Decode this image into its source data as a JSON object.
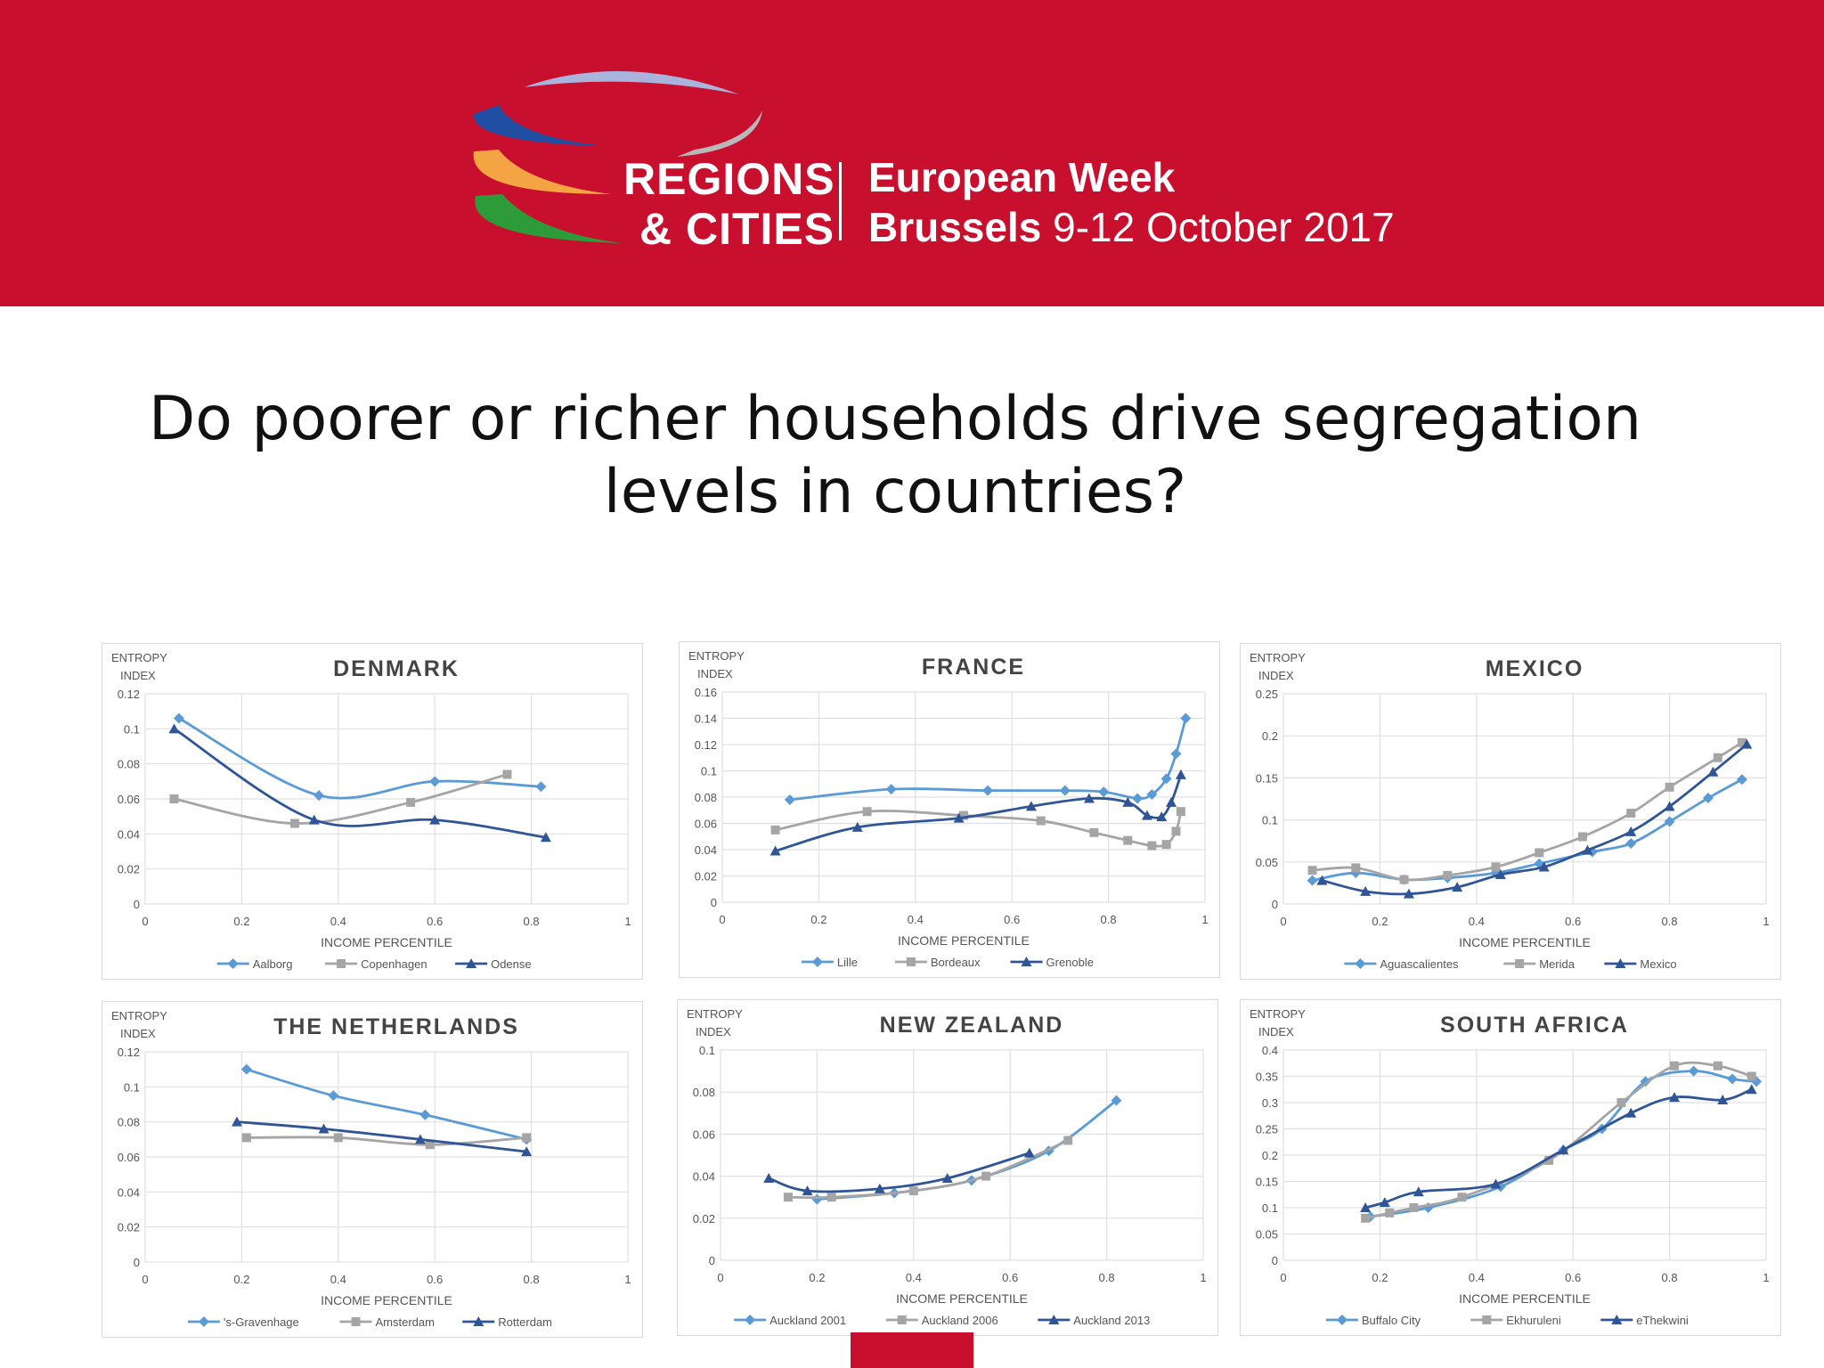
{
  "header": {
    "brand_line1": "REGIONS",
    "brand_line2": "& CITIES",
    "event_line1": "European Week",
    "event_city": "Brussels",
    "event_dates": "9-12 October 2017",
    "colors": {
      "banner": "#c8102e",
      "swoosh_lavender": "#a9b4dd",
      "swoosh_blue": "#1f4ea3",
      "swoosh_grey": "#b9b9b9",
      "swoosh_orange": "#f4a443",
      "swoosh_green": "#2e9b3a"
    }
  },
  "slide": {
    "title_line1": "Do poorer or richer households drive segregation",
    "title_line2": "levels in countries?"
  },
  "series_colors": [
    "#5b9bd5",
    "#a5a5a5",
    "#2f5597"
  ],
  "chart_data": [
    {
      "type": "line",
      "title": "DENMARK",
      "ylabel_line1": "ENTROPY",
      "ylabel_line2": "INDEX",
      "xlabel": "INCOME PERCENTILE",
      "xlim": [
        0,
        1
      ],
      "ylim": [
        0,
        0.12
      ],
      "xticks": [
        "0",
        "0.2",
        "0.4",
        "0.6",
        "0.8",
        "1"
      ],
      "yticks": [
        "0",
        "0.02",
        "0.04",
        "0.06",
        "0.08",
        "0.1",
        "0.12"
      ],
      "grid": true,
      "legend": "bottom",
      "series": [
        {
          "name": "Aalborg",
          "marker": "diamond",
          "points": [
            [
              0.07,
              0.106
            ],
            [
              0.36,
              0.062
            ],
            [
              0.6,
              0.07
            ],
            [
              0.82,
              0.067
            ]
          ]
        },
        {
          "name": "Copenhagen",
          "marker": "square",
          "points": [
            [
              0.06,
              0.06
            ],
            [
              0.31,
              0.046
            ],
            [
              0.55,
              0.058
            ],
            [
              0.75,
              0.074
            ]
          ]
        },
        {
          "name": "Odense",
          "marker": "triangle",
          "points": [
            [
              0.06,
              0.1
            ],
            [
              0.35,
              0.048
            ],
            [
              0.6,
              0.048
            ],
            [
              0.83,
              0.038
            ]
          ]
        }
      ]
    },
    {
      "type": "line",
      "title": "FRANCE",
      "ylabel_line1": "ENTROPY",
      "ylabel_line2": "INDEX",
      "xlabel": "INCOME PERCENTILE",
      "xlim": [
        0,
        1
      ],
      "ylim": [
        0,
        0.16
      ],
      "xticks": [
        "0",
        "0.2",
        "0.4",
        "0.6",
        "0.8",
        "1"
      ],
      "yticks": [
        "0",
        "0.02",
        "0.04",
        "0.06",
        "0.08",
        "0.1",
        "0.12",
        "0.14",
        "0.16"
      ],
      "grid": true,
      "legend": "bottom",
      "series": [
        {
          "name": "Lille",
          "marker": "diamond",
          "points": [
            [
              0.14,
              0.078
            ],
            [
              0.35,
              0.086
            ],
            [
              0.55,
              0.085
            ],
            [
              0.71,
              0.085
            ],
            [
              0.79,
              0.084
            ],
            [
              0.86,
              0.079
            ],
            [
              0.89,
              0.082
            ],
            [
              0.92,
              0.094
            ],
            [
              0.94,
              0.113
            ],
            [
              0.96,
              0.14
            ]
          ]
        },
        {
          "name": "Bordeaux",
          "marker": "square",
          "points": [
            [
              0.11,
              0.055
            ],
            [
              0.3,
              0.069
            ],
            [
              0.5,
              0.066
            ],
            [
              0.66,
              0.062
            ],
            [
              0.77,
              0.053
            ],
            [
              0.84,
              0.047
            ],
            [
              0.89,
              0.043
            ],
            [
              0.92,
              0.044
            ],
            [
              0.94,
              0.054
            ],
            [
              0.95,
              0.069
            ]
          ]
        },
        {
          "name": "Grenoble",
          "marker": "triangle",
          "points": [
            [
              0.11,
              0.039
            ],
            [
              0.28,
              0.057
            ],
            [
              0.49,
              0.064
            ],
            [
              0.64,
              0.073
            ],
            [
              0.76,
              0.079
            ],
            [
              0.84,
              0.076
            ],
            [
              0.88,
              0.066
            ],
            [
              0.91,
              0.065
            ],
            [
              0.93,
              0.076
            ],
            [
              0.95,
              0.097
            ]
          ]
        }
      ]
    },
    {
      "type": "line",
      "title": "MEXICO",
      "ylabel_line1": "ENTROPY",
      "ylabel_line2": "INDEX",
      "xlabel": "INCOME PERCENTILE",
      "xlim": [
        0,
        1
      ],
      "ylim": [
        0,
        0.25
      ],
      "xticks": [
        "0",
        "0.2",
        "0.4",
        "0.6",
        "0.8",
        "1"
      ],
      "yticks": [
        "0",
        "0.05",
        "0.1",
        "0.15",
        "0.2",
        "0.25"
      ],
      "grid": true,
      "legend": "bottom",
      "series": [
        {
          "name": "Aguascalientes",
          "marker": "diamond",
          "points": [
            [
              0.06,
              0.028
            ],
            [
              0.15,
              0.037
            ],
            [
              0.25,
              0.029
            ],
            [
              0.34,
              0.031
            ],
            [
              0.44,
              0.037
            ],
            [
              0.53,
              0.048
            ],
            [
              0.64,
              0.062
            ],
            [
              0.72,
              0.072
            ],
            [
              0.8,
              0.098
            ],
            [
              0.88,
              0.126
            ],
            [
              0.95,
              0.148
            ]
          ]
        },
        {
          "name": "Merida",
          "marker": "square",
          "points": [
            [
              0.06,
              0.04
            ],
            [
              0.15,
              0.043
            ],
            [
              0.25,
              0.029
            ],
            [
              0.34,
              0.034
            ],
            [
              0.44,
              0.044
            ],
            [
              0.53,
              0.061
            ],
            [
              0.62,
              0.08
            ],
            [
              0.72,
              0.108
            ],
            [
              0.8,
              0.139
            ],
            [
              0.9,
              0.174
            ],
            [
              0.95,
              0.192
            ]
          ]
        },
        {
          "name": "Mexico",
          "marker": "triangle",
          "points": [
            [
              0.08,
              0.028
            ],
            [
              0.17,
              0.015
            ],
            [
              0.26,
              0.012
            ],
            [
              0.36,
              0.02
            ],
            [
              0.45,
              0.035
            ],
            [
              0.54,
              0.044
            ],
            [
              0.63,
              0.064
            ],
            [
              0.72,
              0.086
            ],
            [
              0.8,
              0.116
            ],
            [
              0.89,
              0.157
            ],
            [
              0.96,
              0.19
            ]
          ]
        }
      ]
    },
    {
      "type": "line",
      "title": "THE NETHERLANDS",
      "ylabel_line1": "ENTROPY",
      "ylabel_line2": "INDEX",
      "xlabel": "INCOME PERCENTILE",
      "xlim": [
        0,
        1
      ],
      "ylim": [
        0,
        0.12
      ],
      "xticks": [
        "0",
        "0.2",
        "0.4",
        "0.6",
        "0.8",
        "1"
      ],
      "yticks": [
        "0",
        "0.02",
        "0.04",
        "0.06",
        "0.08",
        "0.1",
        "0.12"
      ],
      "grid": true,
      "legend": "bottom",
      "series": [
        {
          "name": "'s-Gravenhage",
          "marker": "diamond",
          "points": [
            [
              0.21,
              0.11
            ],
            [
              0.39,
              0.095
            ],
            [
              0.58,
              0.084
            ],
            [
              0.79,
              0.07
            ]
          ]
        },
        {
          "name": "Amsterdam",
          "marker": "square",
          "points": [
            [
              0.21,
              0.071
            ],
            [
              0.4,
              0.071
            ],
            [
              0.59,
              0.067
            ],
            [
              0.79,
              0.071
            ]
          ]
        },
        {
          "name": "Rotterdam",
          "marker": "triangle",
          "points": [
            [
              0.19,
              0.08
            ],
            [
              0.37,
              0.076
            ],
            [
              0.57,
              0.07
            ],
            [
              0.79,
              0.063
            ]
          ]
        }
      ]
    },
    {
      "type": "line",
      "title": "NEW ZEALAND",
      "ylabel_line1": "ENTROPY",
      "ylabel_line2": "INDEX",
      "xlabel": "INCOME PERCENTILE",
      "xlim": [
        0,
        1
      ],
      "ylim": [
        0,
        0.1
      ],
      "xticks": [
        "0",
        "0.2",
        "0.4",
        "0.6",
        "0.8",
        "1"
      ],
      "yticks": [
        "0",
        "0.02",
        "0.04",
        "0.06",
        "0.08",
        "0.1"
      ],
      "grid": true,
      "legend": "bottom",
      "series": [
        {
          "name": "Auckland 2001",
          "marker": "diamond",
          "points": [
            [
              0.2,
              0.029
            ],
            [
              0.36,
              0.032
            ],
            [
              0.52,
              0.038
            ],
            [
              0.68,
              0.052
            ],
            [
              0.82,
              0.076
            ]
          ]
        },
        {
          "name": "Auckland 2006",
          "marker": "square",
          "points": [
            [
              0.14,
              0.03
            ],
            [
              0.23,
              0.03
            ],
            [
              0.4,
              0.033
            ],
            [
              0.55,
              0.04
            ],
            [
              0.72,
              0.057
            ]
          ]
        },
        {
          "name": "Auckland 2013",
          "marker": "triangle",
          "points": [
            [
              0.1,
              0.039
            ],
            [
              0.18,
              0.033
            ],
            [
              0.33,
              0.034
            ],
            [
              0.47,
              0.039
            ],
            [
              0.64,
              0.051
            ]
          ]
        }
      ]
    },
    {
      "type": "line",
      "title": "SOUTH AFRICA",
      "ylabel_line1": "ENTROPY",
      "ylabel_line2": "INDEX",
      "xlabel": "INCOME PERCENTILE",
      "xlim": [
        0,
        1
      ],
      "ylim": [
        0,
        0.4
      ],
      "xticks": [
        "0",
        "0.2",
        "0.4",
        "0.6",
        "0.8",
        "1"
      ],
      "yticks": [
        "0",
        "0.05",
        "0.1",
        "0.15",
        "0.2",
        "0.25",
        "0.3",
        "0.35",
        "0.4"
      ],
      "grid": true,
      "legend": "bottom",
      "series": [
        {
          "name": "Buffalo City",
          "marker": "diamond",
          "points": [
            [
              0.18,
              0.083
            ],
            [
              0.3,
              0.1
            ],
            [
              0.45,
              0.14
            ],
            [
              0.58,
              0.21
            ],
            [
              0.66,
              0.25
            ],
            [
              0.75,
              0.34
            ],
            [
              0.85,
              0.36
            ],
            [
              0.93,
              0.345
            ],
            [
              0.98,
              0.34
            ]
          ]
        },
        {
          "name": "Ekhuruleni",
          "marker": "square",
          "points": [
            [
              0.17,
              0.08
            ],
            [
              0.22,
              0.09
            ],
            [
              0.27,
              0.1
            ],
            [
              0.37,
              0.12
            ],
            [
              0.55,
              0.19
            ],
            [
              0.7,
              0.3
            ],
            [
              0.81,
              0.37
            ],
            [
              0.9,
              0.37
            ],
            [
              0.97,
              0.35
            ]
          ]
        },
        {
          "name": "eThekwini",
          "marker": "triangle",
          "points": [
            [
              0.17,
              0.1
            ],
            [
              0.21,
              0.11
            ],
            [
              0.28,
              0.13
            ],
            [
              0.44,
              0.145
            ],
            [
              0.58,
              0.21
            ],
            [
              0.72,
              0.28
            ],
            [
              0.81,
              0.31
            ],
            [
              0.91,
              0.305
            ],
            [
              0.97,
              0.325
            ]
          ]
        }
      ]
    }
  ]
}
